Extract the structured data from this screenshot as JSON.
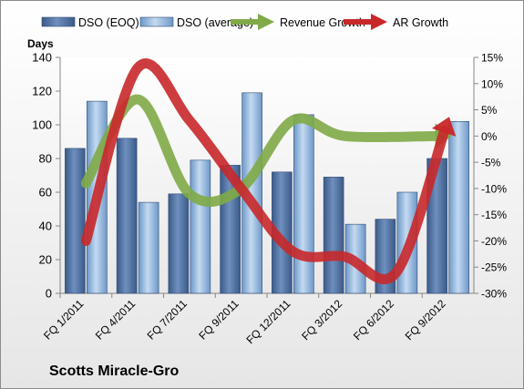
{
  "chart_data": {
    "type": "bar",
    "title": "",
    "company": "Scotts Miracle-Gro",
    "ylabel": "Days",
    "ylim": [
      0,
      140
    ],
    "yticks": [
      0,
      20,
      40,
      60,
      80,
      100,
      120,
      140
    ],
    "y2lim": [
      -30,
      15
    ],
    "y2ticks": [
      "-30%",
      "-25%",
      "-20%",
      "-15%",
      "-10%",
      "-5%",
      "0%",
      "5%",
      "10%",
      "15%"
    ],
    "legend_position": "top",
    "grid": false,
    "categories": [
      "FQ 1/2011",
      "FQ 4/2011",
      "FQ 7/2011",
      "FQ 9/2011",
      "FQ 12/2011",
      "FQ 3/2012",
      "FQ 6/2012",
      "FQ 9/2012"
    ],
    "series": [
      {
        "name": "DSO (EOQ)",
        "kind": "bar",
        "color": "#4f6f9e",
        "values": [
          86,
          92,
          59,
          76,
          72,
          69,
          44,
          80
        ]
      },
      {
        "name": "DSO (average)",
        "kind": "bar",
        "color": "#8fb4de",
        "values": [
          114,
          54,
          79,
          119,
          106,
          41,
          60,
          102
        ]
      },
      {
        "name": "Revenue Growth",
        "kind": "line",
        "axis": "right",
        "color": "#7faa47",
        "values": [
          -9,
          7,
          -11,
          -10,
          3,
          0,
          null,
          0
        ]
      },
      {
        "name": "AR Growth",
        "kind": "line",
        "axis": "right",
        "color": "#c8282a",
        "values": [
          -20,
          13,
          3,
          -10,
          -22,
          -23,
          -26,
          3
        ]
      }
    ]
  }
}
